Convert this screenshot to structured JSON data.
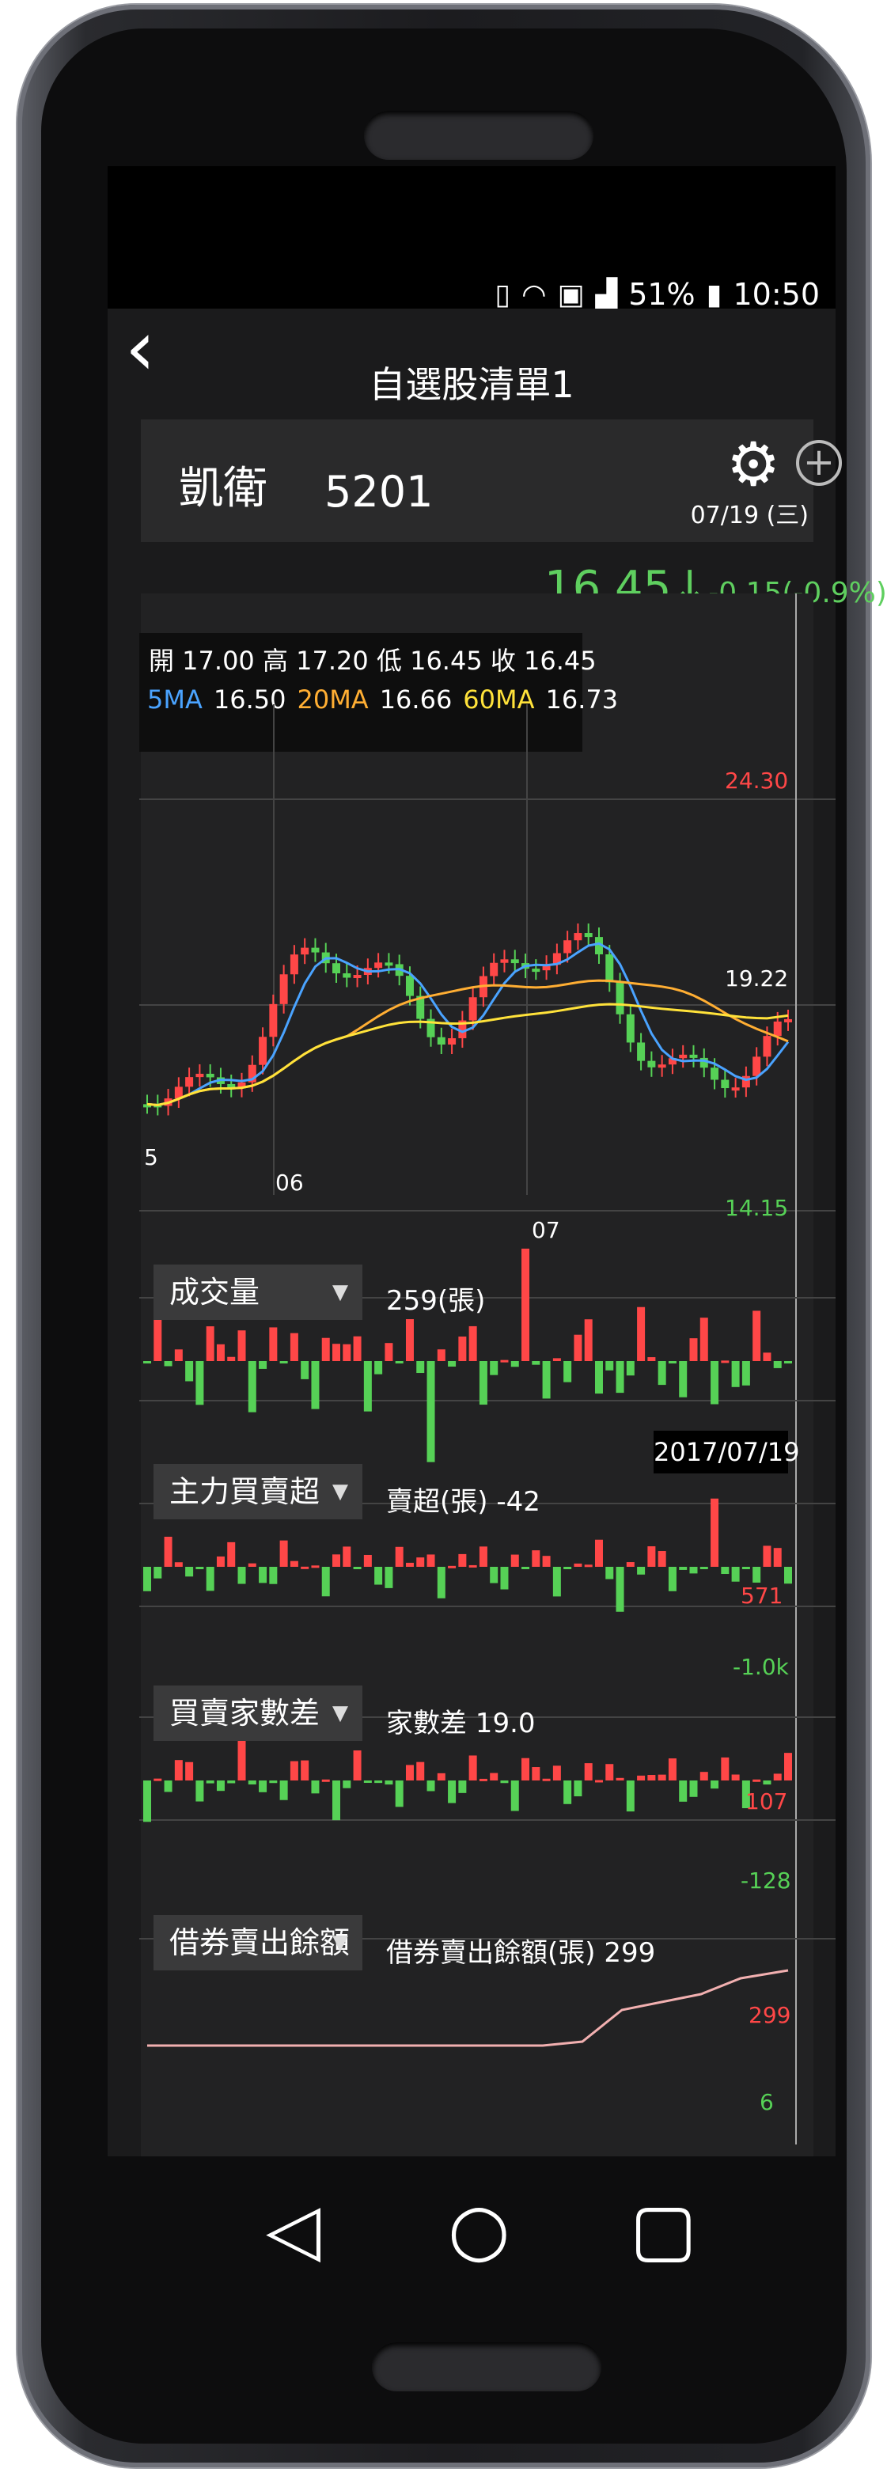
{
  "status_bar": {
    "battery": "51%",
    "time": "10:50",
    "icons": [
      "vibrate-icon",
      "wifi-icon",
      "sim-icon",
      "signal-icon",
      "battery-icon"
    ]
  },
  "app_bar": {
    "title": "自選股清單1",
    "back_icon": "back-chevron-icon"
  },
  "stock": {
    "name": "凱衛",
    "code": "5201",
    "date": "07/19 (三)",
    "price": "16.45",
    "change": "-0.15(-0.9%)",
    "direction_icon": "down-arrow-icon"
  },
  "ohlc": {
    "text": "開 17.00 高 17.20 低 16.45 收 16.45"
  },
  "ma": {
    "ma5": {
      "label": "5MA",
      "value": "16.50"
    },
    "ma20": {
      "label": "20MA",
      "value": "16.66"
    },
    "ma60": {
      "label": "60MA",
      "value": "16.73"
    }
  },
  "price_axis": {
    "high": "24.30",
    "mid": "19.22",
    "low": "14.15"
  },
  "x_axis": {
    "left": "5",
    "mid": "06",
    "right": "07"
  },
  "cursor_date": "2017/07/19",
  "indicators": [
    {
      "selector": "成交量",
      "value_text": "259(張)"
    },
    {
      "selector": "主力買賣超",
      "value_text": "賣超(張) -42",
      "axis_top": "571",
      "axis_bottom": "-1.0k"
    },
    {
      "selector": "買賣家數差",
      "value_text": "家數差 19.0",
      "axis_top": "107",
      "axis_bottom": "-128"
    },
    {
      "selector": "借券賣出餘額",
      "value_text": "借券賣出餘額(張) 299",
      "axis_top": "299",
      "axis_bottom": "6"
    }
  ],
  "chart_data": {
    "type": "candlestick",
    "title": "",
    "ylim": [
      14.15,
      24.3
    ],
    "series": [
      {
        "name": "5MA",
        "color": "#4aa3ff"
      },
      {
        "name": "20MA",
        "color": "#ffae33"
      },
      {
        "name": "60MA",
        "color": "#ffe23a"
      }
    ]
  },
  "colors": {
    "up": "#ff4747",
    "down": "#56d156",
    "background": "#222223"
  }
}
